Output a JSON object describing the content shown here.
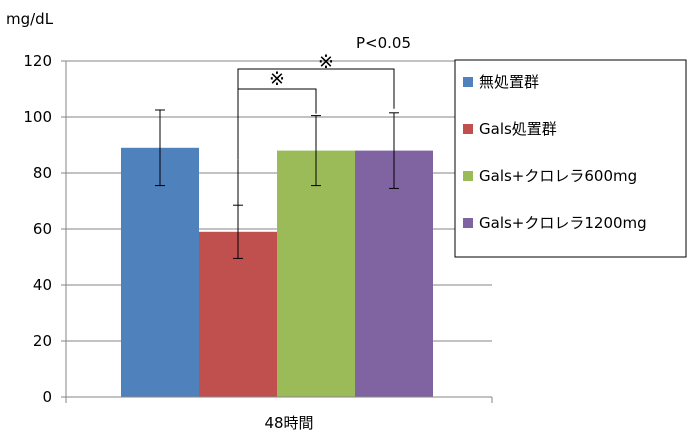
{
  "chart_data": {
    "type": "bar",
    "ylabel": "mg/dL",
    "ylim": [
      0,
      120
    ],
    "yticks": [
      0,
      20,
      40,
      60,
      80,
      100,
      120
    ],
    "categories": [
      "48時間"
    ],
    "grid": true,
    "legend_position": "right",
    "series": [
      {
        "name": "無処置群",
        "values": [
          89
        ],
        "error": [
          13.5
        ],
        "color": "#4f81bd"
      },
      {
        "name": "Gals処置群",
        "values": [
          59
        ],
        "error": [
          9.5
        ],
        "color": "#c0504d"
      },
      {
        "name": "Gals+クロレラ600mg",
        "values": [
          88
        ],
        "error": [
          12.5
        ],
        "color": "#9bbb59"
      },
      {
        "name": "Gals+クロレラ1200mg",
        "values": [
          88
        ],
        "error": [
          13.5
        ],
        "color": "#8064a2"
      }
    ],
    "annotations": {
      "significance_mark": "※",
      "p_value": "P<0.05"
    }
  }
}
